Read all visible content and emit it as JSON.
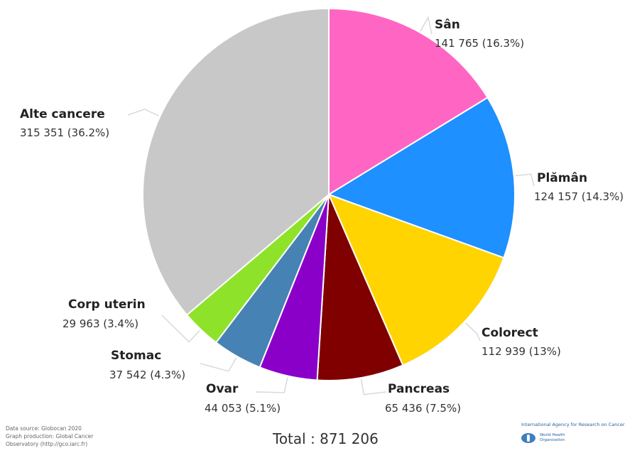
{
  "chart_data": {
    "type": "pie",
    "title": "",
    "total_label": "Total : 871 206",
    "slices": [
      {
        "name": "Sân",
        "value": 141765,
        "value_label": "141 765 (16.3%)",
        "percent": 16.3,
        "color": "#ff66c4"
      },
      {
        "name": "Plămân",
        "value": 124157,
        "value_label": "124 157 (14.3%)",
        "percent": 14.3,
        "color": "#1e90ff"
      },
      {
        "name": "Colorect",
        "value": 112939,
        "value_label": "112 939 (13%)",
        "percent": 13.0,
        "color": "#ffd400"
      },
      {
        "name": "Pancreas",
        "value": 65436,
        "value_label": "65 436 (7.5%)",
        "percent": 7.5,
        "color": "#800000"
      },
      {
        "name": "Ovar",
        "value": 44053,
        "value_label": "44 053 (5.1%)",
        "percent": 5.1,
        "color": "#8b00c9"
      },
      {
        "name": "Stomac",
        "value": 37542,
        "value_label": "37 542 (4.3%)",
        "percent": 4.3,
        "color": "#4682b4"
      },
      {
        "name": "Corp uterin",
        "value": 29963,
        "value_label": "29 963 (3.4%)",
        "percent": 3.4,
        "color": "#8fe22a"
      },
      {
        "name": "Alte cancere",
        "value": 315351,
        "value_label": "315 351 (36.2%)",
        "percent": 36.2,
        "color": "#c8c8c8"
      }
    ]
  },
  "footer": {
    "source_lines": [
      "Data source: Globocan 2020",
      "Graph production: Global Cancer",
      "Observatory (http://gco.iarc.fr)"
    ],
    "iarc_title": "International Agency for Research on Cancer",
    "who_lines": [
      "World Health",
      "Organization"
    ]
  }
}
